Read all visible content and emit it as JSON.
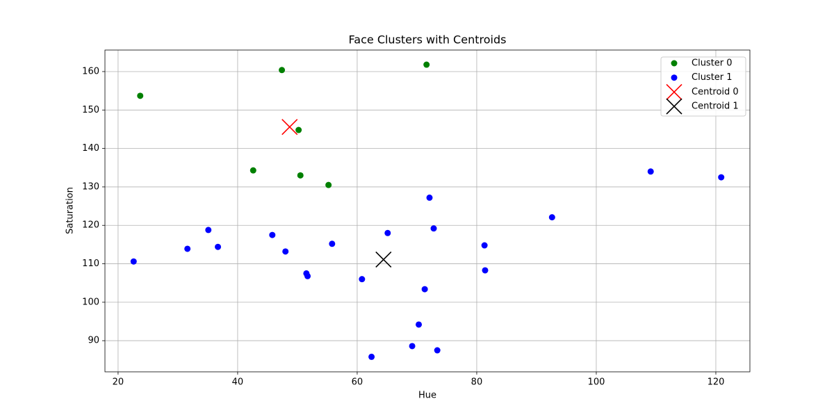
{
  "chart_data": {
    "type": "scatter",
    "title": "Face Clusters with Centroids",
    "x_label": "Hue",
    "y_label": "Saturation",
    "xlim": [
      17.8,
      125.7
    ],
    "ylim": [
      81.9,
      165.6
    ],
    "xticks": [
      20,
      40,
      60,
      80,
      100,
      120
    ],
    "yticks": [
      90,
      100,
      110,
      120,
      130,
      140,
      150,
      160
    ],
    "grid": true,
    "legend": "upper right",
    "series": [
      {
        "name": "Cluster 0",
        "color": "#008000",
        "marker": "o",
        "x": [
          23.7,
          47.4,
          71.6,
          50.2,
          42.6,
          50.5,
          55.2
        ],
        "values": [
          153.7,
          160.4,
          161.8,
          144.8,
          134.3,
          133.0,
          130.5
        ]
      },
      {
        "name": "Cluster 1",
        "color": "#0000ff",
        "marker": "o",
        "x": [
          22.6,
          31.6,
          35.1,
          36.7,
          45.8,
          48.0,
          51.5,
          51.7,
          55.8,
          60.8,
          65.1,
          72.1,
          72.8,
          71.3,
          70.3,
          69.2,
          73.4,
          62.4,
          81.3,
          81.4,
          92.6,
          109.1,
          120.9
        ],
        "values": [
          110.6,
          113.9,
          118.8,
          114.4,
          117.5,
          113.2,
          107.5,
          106.8,
          115.2,
          106.0,
          118.0,
          127.2,
          119.2,
          103.4,
          94.2,
          88.6,
          87.5,
          85.8,
          114.8,
          108.3,
          122.1,
          134.0,
          132.5
        ]
      },
      {
        "name": "Centroid 0",
        "color": "#ff0000",
        "marker": "x",
        "x": [
          48.7
        ],
        "values": [
          145.6
        ]
      },
      {
        "name": "Centroid 1",
        "color": "#000000",
        "marker": "x",
        "x": [
          64.4
        ],
        "values": [
          111.1
        ]
      }
    ]
  }
}
